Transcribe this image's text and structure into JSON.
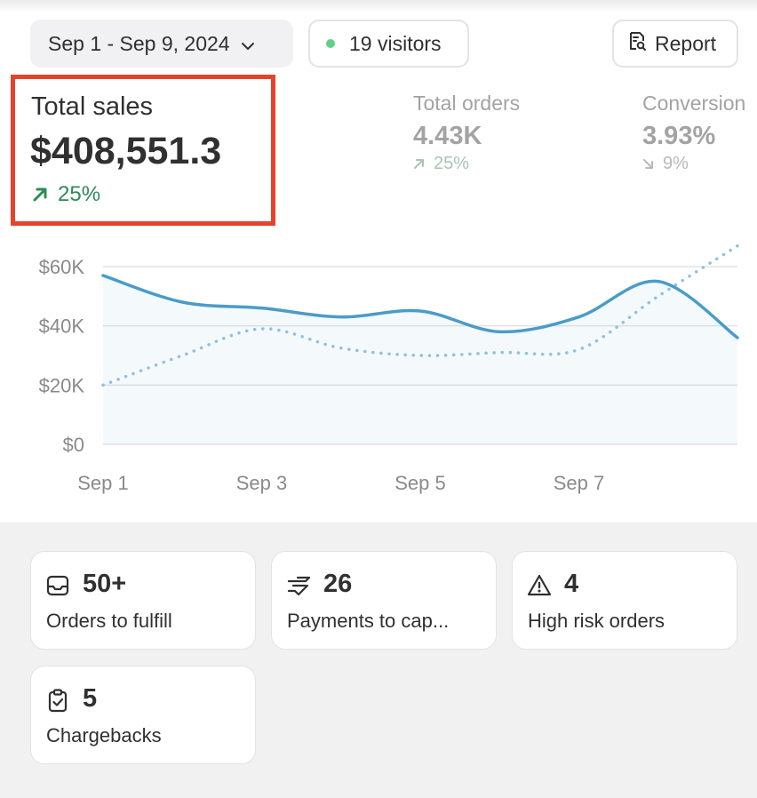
{
  "header": {
    "date_range": "Sep 1 - Sep 9, 2024",
    "visitors": "19 visitors",
    "report_label": "Report"
  },
  "metrics": {
    "total_sales": {
      "label": "Total sales",
      "value": "$408,551.3",
      "change": "25%",
      "direction": "up"
    },
    "total_orders": {
      "label": "Total orders",
      "value": "4.43K",
      "change": "25%",
      "direction": "up"
    },
    "conversion": {
      "label": "Conversion",
      "value": "3.93%",
      "change": "9%",
      "direction": "down"
    }
  },
  "chart_data": {
    "type": "line",
    "x": [
      "Sep 1",
      "Sep 2",
      "Sep 3",
      "Sep 4",
      "Sep 5",
      "Sep 6",
      "Sep 7",
      "Sep 8",
      "Sep 9"
    ],
    "xticks": [
      "Sep 1",
      "Sep 3",
      "Sep 5",
      "Sep 7"
    ],
    "yticks": [
      "$60K",
      "$40K",
      "$20K",
      "$0"
    ],
    "ylim": [
      0,
      60000
    ],
    "series": [
      {
        "style": "solid",
        "color": "#4a9cc8",
        "values": [
          57000,
          48000,
          46000,
          43000,
          45000,
          38000,
          43000,
          55000,
          36000
        ]
      },
      {
        "style": "dotted",
        "color": "#8fc1dd",
        "values": [
          20000,
          30000,
          39000,
          32500,
          30000,
          31000,
          32000,
          50000,
          67000
        ]
      }
    ]
  },
  "tasks": [
    {
      "icon": "inbox-icon",
      "count": "50+",
      "label": "Orders to fulfill"
    },
    {
      "icon": "payment-icon",
      "count": "26",
      "label": "Payments to cap..."
    },
    {
      "icon": "warning-icon",
      "count": "4",
      "label": "High risk orders"
    },
    {
      "icon": "clipboard-check-icon",
      "count": "5",
      "label": "Chargebacks"
    }
  ]
}
